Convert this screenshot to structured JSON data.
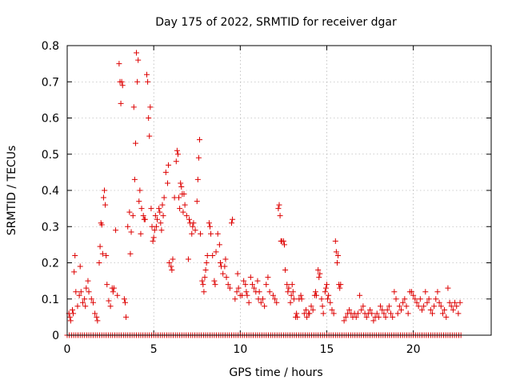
{
  "chart_data": {
    "type": "scatter",
    "title": "Day 175 of 2022, SRMTID for receiver dgar",
    "xlabel": "GPS time / hours",
    "ylabel": "SRMTID / TECUs",
    "xlim": [
      0,
      24.5
    ],
    "ylim": [
      0,
      0.8
    ],
    "xticks": [
      0,
      5,
      10,
      15,
      20
    ],
    "yticks": [
      0,
      0.1,
      0.2,
      0.3,
      0.4,
      0.5,
      0.6,
      0.7,
      0.8
    ],
    "ytick_labels": [
      "0",
      "0.1",
      "0.2",
      "0.3",
      "0.4",
      "0.5",
      "0.6",
      "0.7",
      "0.8"
    ],
    "grid": true,
    "marker": "+",
    "color": "#dd0000",
    "zero_series": {
      "x_start": 0.0,
      "x_end": 22.75,
      "step": 0.125,
      "value": 0
    },
    "series": [
      {
        "name": "SRMTID",
        "points": [
          [
            0.1,
            0.06
          ],
          [
            0.15,
            0.05
          ],
          [
            0.2,
            0.04
          ],
          [
            0.3,
            0.07
          ],
          [
            0.35,
            0.06
          ],
          [
            0.4,
            0.175
          ],
          [
            0.45,
            0.22
          ],
          [
            0.5,
            0.12
          ],
          [
            0.6,
            0.08
          ],
          [
            0.7,
            0.11
          ],
          [
            0.75,
            0.19
          ],
          [
            0.8,
            0.12
          ],
          [
            0.9,
            0.09
          ],
          [
            1.0,
            0.1
          ],
          [
            1.05,
            0.08
          ],
          [
            1.1,
            0.13
          ],
          [
            1.2,
            0.15
          ],
          [
            1.25,
            0.12
          ],
          [
            1.4,
            0.1
          ],
          [
            1.5,
            0.09
          ],
          [
            1.6,
            0.06
          ],
          [
            1.7,
            0.05
          ],
          [
            1.75,
            0.04
          ],
          [
            1.85,
            0.2
          ],
          [
            1.9,
            0.245
          ],
          [
            1.95,
            0.31
          ],
          [
            2.0,
            0.305
          ],
          [
            2.05,
            0.225
          ],
          [
            2.1,
            0.38
          ],
          [
            2.15,
            0.4
          ],
          [
            2.2,
            0.36
          ],
          [
            2.25,
            0.22
          ],
          [
            2.3,
            0.14
          ],
          [
            2.4,
            0.095
          ],
          [
            2.5,
            0.08
          ],
          [
            2.6,
            0.13
          ],
          [
            2.65,
            0.12
          ],
          [
            2.7,
            0.13
          ],
          [
            2.8,
            0.29
          ],
          [
            2.9,
            0.11
          ],
          [
            3.0,
            0.75
          ],
          [
            3.05,
            0.7
          ],
          [
            3.1,
            0.64
          ],
          [
            3.15,
            0.7
          ],
          [
            3.2,
            0.69
          ],
          [
            3.3,
            0.1
          ],
          [
            3.35,
            0.09
          ],
          [
            3.4,
            0.05
          ],
          [
            3.5,
            0.3
          ],
          [
            3.6,
            0.34
          ],
          [
            3.65,
            0.225
          ],
          [
            3.7,
            0.285
          ],
          [
            3.8,
            0.33
          ],
          [
            3.85,
            0.63
          ],
          [
            3.9,
            0.43
          ],
          [
            3.95,
            0.53
          ],
          [
            4.0,
            0.78
          ],
          [
            4.05,
            0.7
          ],
          [
            4.1,
            0.76
          ],
          [
            4.15,
            0.37
          ],
          [
            4.2,
            0.4
          ],
          [
            4.25,
            0.28
          ],
          [
            4.3,
            0.35
          ],
          [
            4.4,
            0.33
          ],
          [
            4.45,
            0.32
          ],
          [
            4.5,
            0.32
          ],
          [
            4.6,
            0.72
          ],
          [
            4.65,
            0.7
          ],
          [
            4.7,
            0.6
          ],
          [
            4.75,
            0.55
          ],
          [
            4.8,
            0.63
          ],
          [
            4.85,
            0.35
          ],
          [
            4.9,
            0.3
          ],
          [
            4.95,
            0.26
          ],
          [
            5.0,
            0.27
          ],
          [
            5.05,
            0.29
          ],
          [
            5.1,
            0.33
          ],
          [
            5.15,
            0.3
          ],
          [
            5.2,
            0.32
          ],
          [
            5.3,
            0.35
          ],
          [
            5.35,
            0.34
          ],
          [
            5.4,
            0.31
          ],
          [
            5.45,
            0.29
          ],
          [
            5.5,
            0.36
          ],
          [
            5.55,
            0.33
          ],
          [
            5.6,
            0.38
          ],
          [
            5.7,
            0.45
          ],
          [
            5.8,
            0.42
          ],
          [
            5.85,
            0.47
          ],
          [
            5.9,
            0.2
          ],
          [
            6.0,
            0.19
          ],
          [
            6.05,
            0.18
          ],
          [
            6.1,
            0.21
          ],
          [
            6.2,
            0.38
          ],
          [
            6.3,
            0.48
          ],
          [
            6.35,
            0.51
          ],
          [
            6.4,
            0.5
          ],
          [
            6.45,
            0.38
          ],
          [
            6.5,
            0.35
          ],
          [
            6.55,
            0.42
          ],
          [
            6.6,
            0.41
          ],
          [
            6.65,
            0.39
          ],
          [
            6.7,
            0.34
          ],
          [
            6.75,
            0.39
          ],
          [
            6.8,
            0.36
          ],
          [
            6.9,
            0.33
          ],
          [
            7.0,
            0.21
          ],
          [
            7.05,
            0.32
          ],
          [
            7.1,
            0.31
          ],
          [
            7.2,
            0.28
          ],
          [
            7.25,
            0.3
          ],
          [
            7.3,
            0.31
          ],
          [
            7.4,
            0.29
          ],
          [
            7.5,
            0.37
          ],
          [
            7.55,
            0.43
          ],
          [
            7.6,
            0.49
          ],
          [
            7.65,
            0.54
          ],
          [
            7.7,
            0.28
          ],
          [
            7.8,
            0.15
          ],
          [
            7.85,
            0.14
          ],
          [
            7.9,
            0.12
          ],
          [
            7.95,
            0.16
          ],
          [
            8.0,
            0.18
          ],
          [
            8.05,
            0.2
          ],
          [
            8.1,
            0.22
          ],
          [
            8.2,
            0.31
          ],
          [
            8.25,
            0.3
          ],
          [
            8.3,
            0.28
          ],
          [
            8.4,
            0.22
          ],
          [
            8.5,
            0.15
          ],
          [
            8.55,
            0.14
          ],
          [
            8.6,
            0.23
          ],
          [
            8.7,
            0.28
          ],
          [
            8.8,
            0.25
          ],
          [
            8.85,
            0.2
          ],
          [
            8.9,
            0.19
          ],
          [
            9.0,
            0.17
          ],
          [
            9.1,
            0.19
          ],
          [
            9.15,
            0.21
          ],
          [
            9.2,
            0.16
          ],
          [
            9.3,
            0.14
          ],
          [
            9.4,
            0.13
          ],
          [
            9.5,
            0.31
          ],
          [
            9.55,
            0.32
          ],
          [
            9.7,
            0.1
          ],
          [
            9.8,
            0.12
          ],
          [
            9.85,
            0.17
          ],
          [
            9.9,
            0.13
          ],
          [
            10.0,
            0.11
          ],
          [
            10.1,
            0.11
          ],
          [
            10.2,
            0.15
          ],
          [
            10.3,
            0.14
          ],
          [
            10.35,
            0.12
          ],
          [
            10.4,
            0.11
          ],
          [
            10.5,
            0.09
          ],
          [
            10.6,
            0.16
          ],
          [
            10.7,
            0.14
          ],
          [
            10.8,
            0.13
          ],
          [
            10.9,
            0.12
          ],
          [
            11.0,
            0.15
          ],
          [
            11.05,
            0.1
          ],
          [
            11.1,
            0.12
          ],
          [
            11.2,
            0.09
          ],
          [
            11.3,
            0.1
          ],
          [
            11.4,
            0.08
          ],
          [
            11.5,
            0.14
          ],
          [
            11.6,
            0.16
          ],
          [
            11.7,
            0.12
          ],
          [
            11.9,
            0.11
          ],
          [
            12.0,
            0.1
          ],
          [
            12.1,
            0.09
          ],
          [
            12.2,
            0.35
          ],
          [
            12.25,
            0.36
          ],
          [
            12.3,
            0.33
          ],
          [
            12.35,
            0.26
          ],
          [
            12.4,
            0.26
          ],
          [
            12.5,
            0.26
          ],
          [
            12.55,
            0.25
          ],
          [
            12.6,
            0.18
          ],
          [
            12.7,
            0.14
          ],
          [
            12.75,
            0.12
          ],
          [
            12.8,
            0.13
          ],
          [
            12.9,
            0.09
          ],
          [
            12.95,
            0.11
          ],
          [
            13.0,
            0.14
          ],
          [
            13.05,
            0.12
          ],
          [
            13.1,
            0.1
          ],
          [
            13.2,
            0.05
          ],
          [
            13.25,
            0.06
          ],
          [
            13.3,
            0.05
          ],
          [
            13.4,
            0.1
          ],
          [
            13.5,
            0.11
          ],
          [
            13.55,
            0.1
          ],
          [
            13.7,
            0.06
          ],
          [
            13.8,
            0.07
          ],
          [
            13.85,
            0.05
          ],
          [
            13.95,
            0.06
          ],
          [
            14.0,
            0.06
          ],
          [
            14.1,
            0.08
          ],
          [
            14.2,
            0.07
          ],
          [
            14.3,
            0.11
          ],
          [
            14.35,
            0.12
          ],
          [
            14.4,
            0.11
          ],
          [
            14.5,
            0.18
          ],
          [
            14.55,
            0.16
          ],
          [
            14.6,
            0.17
          ],
          [
            14.7,
            0.1
          ],
          [
            14.75,
            0.08
          ],
          [
            14.8,
            0.06
          ],
          [
            14.9,
            0.12
          ],
          [
            14.95,
            0.13
          ],
          [
            15.0,
            0.14
          ],
          [
            15.05,
            0.1
          ],
          [
            15.1,
            0.11
          ],
          [
            15.2,
            0.09
          ],
          [
            15.3,
            0.07
          ],
          [
            15.4,
            0.06
          ],
          [
            15.5,
            0.26
          ],
          [
            15.55,
            0.23
          ],
          [
            15.6,
            0.2
          ],
          [
            15.65,
            0.22
          ],
          [
            15.7,
            0.14
          ],
          [
            15.75,
            0.13
          ],
          [
            15.8,
            0.14
          ],
          [
            16.0,
            0.04
          ],
          [
            16.1,
            0.05
          ],
          [
            16.2,
            0.06
          ],
          [
            16.3,
            0.07
          ],
          [
            16.4,
            0.06
          ],
          [
            16.5,
            0.05
          ],
          [
            16.6,
            0.06
          ],
          [
            16.7,
            0.05
          ],
          [
            16.8,
            0.06
          ],
          [
            16.9,
            0.11
          ],
          [
            17.0,
            0.07
          ],
          [
            17.1,
            0.08
          ],
          [
            17.2,
            0.06
          ],
          [
            17.3,
            0.05
          ],
          [
            17.4,
            0.06
          ],
          [
            17.5,
            0.07
          ],
          [
            17.6,
            0.06
          ],
          [
            17.7,
            0.04
          ],
          [
            17.8,
            0.05
          ],
          [
            17.9,
            0.06
          ],
          [
            18.0,
            0.05
          ],
          [
            18.1,
            0.08
          ],
          [
            18.2,
            0.07
          ],
          [
            18.3,
            0.06
          ],
          [
            18.4,
            0.05
          ],
          [
            18.5,
            0.07
          ],
          [
            18.6,
            0.08
          ],
          [
            18.7,
            0.06
          ],
          [
            18.8,
            0.05
          ],
          [
            18.9,
            0.12
          ],
          [
            19.0,
            0.1
          ],
          [
            19.1,
            0.06
          ],
          [
            19.2,
            0.08
          ],
          [
            19.3,
            0.07
          ],
          [
            19.4,
            0.09
          ],
          [
            19.5,
            0.1
          ],
          [
            19.6,
            0.08
          ],
          [
            19.7,
            0.06
          ],
          [
            19.8,
            0.12
          ],
          [
            19.9,
            0.12
          ],
          [
            20.0,
            0.11
          ],
          [
            20.1,
            0.1
          ],
          [
            20.2,
            0.09
          ],
          [
            20.3,
            0.08
          ],
          [
            20.4,
            0.1
          ],
          [
            20.5,
            0.07
          ],
          [
            20.6,
            0.08
          ],
          [
            20.7,
            0.12
          ],
          [
            20.8,
            0.09
          ],
          [
            20.9,
            0.1
          ],
          [
            21.0,
            0.07
          ],
          [
            21.1,
            0.06
          ],
          [
            21.2,
            0.08
          ],
          [
            21.3,
            0.1
          ],
          [
            21.4,
            0.12
          ],
          [
            21.5,
            0.09
          ],
          [
            21.6,
            0.08
          ],
          [
            21.7,
            0.06
          ],
          [
            21.8,
            0.07
          ],
          [
            21.9,
            0.05
          ],
          [
            22.0,
            0.13
          ],
          [
            22.1,
            0.09
          ],
          [
            22.2,
            0.08
          ],
          [
            22.3,
            0.07
          ],
          [
            22.4,
            0.09
          ],
          [
            22.5,
            0.08
          ],
          [
            22.6,
            0.06
          ],
          [
            22.7,
            0.09
          ]
        ]
      }
    ]
  }
}
